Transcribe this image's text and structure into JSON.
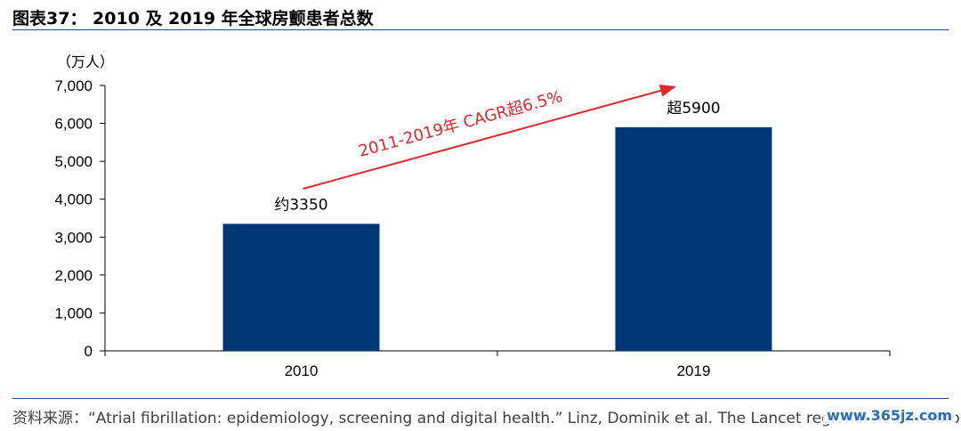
{
  "header": {
    "title": "图表37： 2010 及 2019 年全球房颤患者总数"
  },
  "footer": {
    "source": "资料来源：“Atrial fibrillation: epidemiology, screening and digital health.” Linz, Dominik et al. The Lancet regional health-Europe",
    "watermark": "www.365jz.com"
  },
  "chart_data": {
    "type": "bar",
    "categories": [
      "2010",
      "2019"
    ],
    "values": [
      3350,
      5900
    ],
    "data_labels": [
      "约3350",
      "超5900"
    ],
    "unit": "（万人）",
    "ylim": [
      0,
      7000
    ],
    "yticks": [
      0,
      1000,
      2000,
      3000,
      4000,
      5000,
      6000,
      7000
    ],
    "ytick_labels": [
      "0",
      "1,000",
      "2,000",
      "3,000",
      "4,000",
      "5,000",
      "6,000",
      "7,000"
    ],
    "annotation": "2011-2019年 CAGR超6.5%",
    "grid": false,
    "colors": {
      "bar": "#003876",
      "arrow": "#e5262d",
      "rule": "#1f4e8c"
    }
  }
}
